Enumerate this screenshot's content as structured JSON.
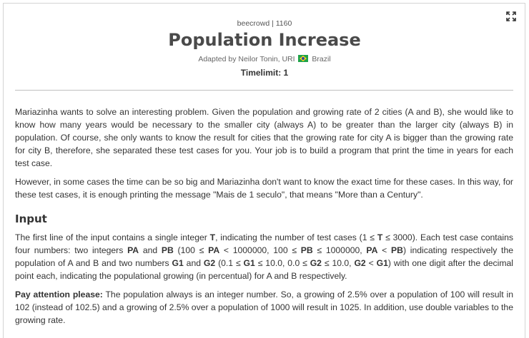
{
  "problem": {
    "source": "beecrowd | 1160",
    "title": "Population Increase",
    "adapted_prefix": "Adapted by Neilor Tonin, URI",
    "adapted_country": "Brazil",
    "timelimit": "Timelimit: 1"
  },
  "description": {
    "p1": "Mariazinha wants to solve an interesting problem. Given the population and growing rate of 2 cities (A and B), she would like to know how many years would be necessary to the smaller city (always A) to be greater than the larger city (always B) in population. Of course, she only wants to know the result for cities that the growing rate for city A is bigger than the growing rate for city B, therefore, she separated these test cases for you. Your job is to build a program that print the time in years for each test case.",
    "p2": "However, in some cases the time can be so big and Mariazinha don't want to know the exact time for these cases. In this way, for these test cases, it is enough printing the message \"Mais de 1 seculo\", that means \"More than a Century\"."
  },
  "input": {
    "heading": "Input",
    "p1": {
      "t1": "The first line of the input contains a single integer ",
      "b1": "T",
      "t2": ", indicating the number of test cases (1 ≤ ",
      "b2": "T",
      "t3": " ≤ 3000). Each test case contains four numbers: two integers ",
      "b3": "PA",
      "t4": " and ",
      "b4": "PB",
      "t5": " (100 ≤ ",
      "b5": "PA",
      "t6": " < 1000000, 100 ≤ ",
      "b6": "PB",
      "t7": " ≤ 1000000, ",
      "b7": "PA",
      "t8": " < ",
      "b8": "PB",
      "t9": ") indicating respectively the population of A and B and two numbers ",
      "b9": "G1",
      "t10": " and ",
      "b10": "G2",
      "t11": " (0.1 ≤ ",
      "b11": "G1",
      "t12": " ≤ 10.0, 0.0 ≤ ",
      "b12": "G2",
      "t13": " ≤ 10.0, ",
      "b13": "G2",
      "t14": " < ",
      "b14": "G1",
      "t15": ") with one digit after the decimal point each, indicating the populational growing (in percentual) for A and B respectively."
    },
    "p2": {
      "b1": "Pay attention please:",
      "t1": " The population always is an integer number. So, a growing of 2.5% over a population of 100 will result in 102 (instead of 102.5) and a growing of 2.5% over a population of 1000 will result in 1025. In addition, use double variables to the growing rate."
    }
  },
  "icons": {
    "expand": "expand-icon",
    "flag": "brazil-flag-icon"
  }
}
